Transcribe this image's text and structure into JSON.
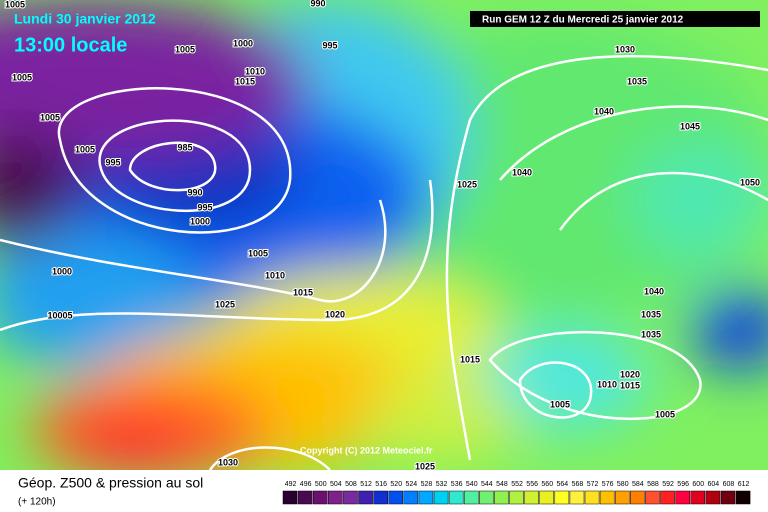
{
  "header": {
    "date": "Lundi 30 janvier 2012",
    "time": "13:00 locale",
    "run": "Run GEM 12 Z du Mercredi 25 janvier 2012"
  },
  "isobar_labels": [
    "1005",
    "990",
    "1005",
    "1000",
    "995",
    "1010",
    "1015",
    "1005",
    "1005",
    "1005",
    "995",
    "985",
    "990",
    "995",
    "1000",
    "1005",
    "1010",
    "1015",
    "1025",
    "1020",
    "1000",
    "10005",
    "1030",
    "1035",
    "1040",
    "1045",
    "1025",
    "1040",
    "1050",
    "1040",
    "1035",
    "1035",
    "1020",
    "1015",
    "1010",
    "1015",
    "1005",
    "1005",
    "1030",
    "1025"
  ],
  "copyright": "Copyright (C) 2012 Meteociel.fr",
  "legend": {
    "title": "Géop. Z500 & pression au sol",
    "subtitle": "(+ 120h)",
    "values": [
      492,
      496,
      500,
      504,
      508,
      512,
      516,
      520,
      524,
      528,
      532,
      536,
      540,
      544,
      548,
      552,
      556,
      560,
      564,
      568,
      572,
      576,
      580,
      584,
      588,
      592,
      596,
      600,
      604,
      608,
      612
    ],
    "colors": [
      "#2a0030",
      "#4a0a50",
      "#6a1070",
      "#80208a",
      "#7a2aa0",
      "#4020b0",
      "#1030d0",
      "#0050f0",
      "#0080ff",
      "#00a8ff",
      "#00d0f0",
      "#30e8d0",
      "#50f0a0",
      "#70f070",
      "#90f050",
      "#b0f040",
      "#d0f030",
      "#e8f020",
      "#ffff20",
      "#fff040",
      "#ffe020",
      "#ffc000",
      "#ffa000",
      "#ff8000",
      "#ff5030",
      "#ff2020",
      "#ff0040",
      "#e00020",
      "#b00010",
      "#700010",
      "#100000"
    ]
  }
}
